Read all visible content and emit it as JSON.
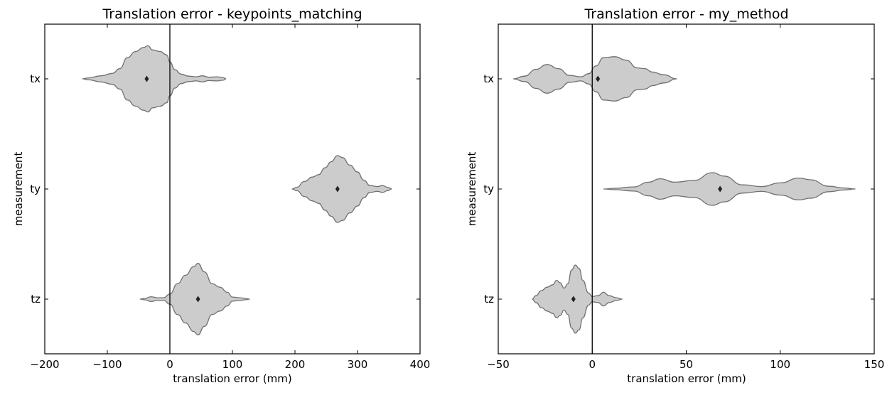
{
  "chart_data": [
    {
      "type": "violin",
      "title": "Translation error - keypoints_matching",
      "xlabel": "translation error (mm)",
      "ylabel": "measurement",
      "xlim": [
        -200,
        400
      ],
      "xticks": [
        -200,
        -100,
        0,
        100,
        200,
        300,
        400
      ],
      "xtick_labels": [
        "−200",
        "−100",
        "0",
        "100",
        "200",
        "300",
        "400"
      ],
      "categories": [
        "tx",
        "ty",
        "tz"
      ],
      "reference_line_x": 0,
      "grid": false,
      "color": "#cccccc",
      "edge_color": "#707070",
      "violins": [
        {
          "category": "tx",
          "median": -37,
          "profile": [
            [
              -140,
              0.0
            ],
            [
              -130,
              0.03
            ],
            [
              -110,
              0.09
            ],
            [
              -92,
              0.16
            ],
            [
              -80,
              0.3
            ],
            [
              -68,
              0.62
            ],
            [
              -55,
              0.8
            ],
            [
              -42,
              0.92
            ],
            [
              -35,
              0.97
            ],
            [
              -28,
              0.85
            ],
            [
              -15,
              0.8
            ],
            [
              -5,
              0.7
            ],
            [
              0,
              0.5
            ],
            [
              8,
              0.27
            ],
            [
              18,
              0.14
            ],
            [
              30,
              0.08
            ],
            [
              42,
              0.06
            ],
            [
              52,
              0.09
            ],
            [
              62,
              0.05
            ],
            [
              75,
              0.06
            ],
            [
              85,
              0.04
            ],
            [
              90,
              0.0
            ]
          ]
        },
        {
          "category": "ty",
          "median": 268,
          "profile": [
            [
              195,
              0.0
            ],
            [
              203,
              0.05
            ],
            [
              215,
              0.22
            ],
            [
              228,
              0.35
            ],
            [
              238,
              0.42
            ],
            [
              248,
              0.62
            ],
            [
              258,
              0.8
            ],
            [
              268,
              0.98
            ],
            [
              276,
              0.92
            ],
            [
              288,
              0.7
            ],
            [
              300,
              0.5
            ],
            [
              310,
              0.26
            ],
            [
              320,
              0.1
            ],
            [
              332,
              0.07
            ],
            [
              340,
              0.1
            ],
            [
              348,
              0.05
            ],
            [
              355,
              0.0
            ]
          ]
        },
        {
          "category": "tz",
          "median": 45,
          "profile": [
            [
              -48,
              0.0
            ],
            [
              -40,
              0.02
            ],
            [
              -30,
              0.07
            ],
            [
              -20,
              0.04
            ],
            [
              -10,
              0.04
            ],
            [
              0,
              0.15
            ],
            [
              12,
              0.45
            ],
            [
              25,
              0.7
            ],
            [
              38,
              0.95
            ],
            [
              45,
              1.05
            ],
            [
              55,
              0.8
            ],
            [
              68,
              0.45
            ],
            [
              80,
              0.35
            ],
            [
              92,
              0.2
            ],
            [
              100,
              0.06
            ],
            [
              112,
              0.04
            ],
            [
              120,
              0.02
            ],
            [
              128,
              0.0
            ]
          ]
        }
      ]
    },
    {
      "type": "violin",
      "title": "Translation error - my_method",
      "xlabel": "translation error (mm)",
      "ylabel": "measurement",
      "xlim": [
        -50,
        150
      ],
      "xticks": [
        -50,
        0,
        50,
        100,
        150
      ],
      "xtick_labels": [
        "−50",
        "0",
        "50",
        "100",
        "150"
      ],
      "categories": [
        "tx",
        "ty",
        "tz"
      ],
      "reference_line_x": 0,
      "grid": false,
      "color": "#cccccc",
      "edge_color": "#707070",
      "violins": [
        {
          "category": "tx",
          "median": 3,
          "profile": [
            [
              -42,
              0.0
            ],
            [
              -36,
              0.08
            ],
            [
              -30,
              0.28
            ],
            [
              -24,
              0.42
            ],
            [
              -18,
              0.3
            ],
            [
              -12,
              0.1
            ],
            [
              -6,
              0.06
            ],
            [
              -2,
              0.15
            ],
            [
              2,
              0.38
            ],
            [
              6,
              0.62
            ],
            [
              12,
              0.65
            ],
            [
              18,
              0.55
            ],
            [
              24,
              0.32
            ],
            [
              28,
              0.3
            ],
            [
              32,
              0.2
            ],
            [
              38,
              0.12
            ],
            [
              45,
              0.0
            ]
          ]
        },
        {
          "category": "ty",
          "median": 68,
          "profile": [
            [
              6,
              0.0
            ],
            [
              12,
              0.02
            ],
            [
              22,
              0.06
            ],
            [
              30,
              0.2
            ],
            [
              36,
              0.3
            ],
            [
              44,
              0.2
            ],
            [
              54,
              0.25
            ],
            [
              64,
              0.48
            ],
            [
              70,
              0.38
            ],
            [
              80,
              0.12
            ],
            [
              90,
              0.07
            ],
            [
              100,
              0.18
            ],
            [
              110,
              0.32
            ],
            [
              116,
              0.27
            ],
            [
              126,
              0.08
            ],
            [
              134,
              0.03
            ],
            [
              140,
              0.0
            ]
          ]
        },
        {
          "category": "tz",
          "median": -10,
          "profile": [
            [
              -32,
              0.0
            ],
            [
              -30,
              0.1
            ],
            [
              -27,
              0.25
            ],
            [
              -24,
              0.35
            ],
            [
              -21,
              0.42
            ],
            [
              -19,
              0.55
            ],
            [
              -17,
              0.48
            ],
            [
              -15,
              0.32
            ],
            [
              -13,
              0.45
            ],
            [
              -11,
              0.85
            ],
            [
              -9,
              1.0
            ],
            [
              -7,
              0.9
            ],
            [
              -5,
              0.55
            ],
            [
              -2,
              0.18
            ],
            [
              0,
              0.08
            ],
            [
              3,
              0.1
            ],
            [
              6,
              0.2
            ],
            [
              9,
              0.1
            ],
            [
              13,
              0.04
            ],
            [
              16,
              0.0
            ]
          ]
        }
      ]
    }
  ]
}
